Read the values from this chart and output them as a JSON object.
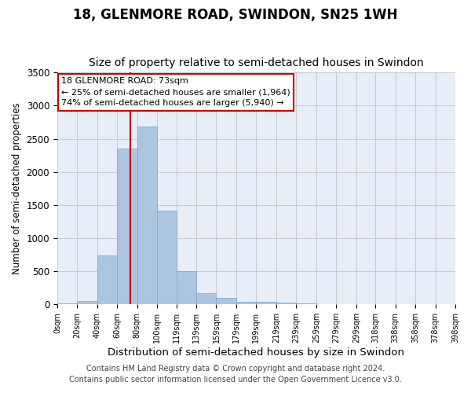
{
  "title": "18, GLENMORE ROAD, SWINDON, SN25 1WH",
  "subtitle": "Size of property relative to semi-detached houses in Swindon",
  "xlabel": "Distribution of semi-detached houses by size in Swindon",
  "ylabel": "Number of semi-detached properties",
  "annotation_title": "18 GLENMORE ROAD: 73sqm",
  "annotation_line1": "← 25% of semi-detached houses are smaller (1,964)",
  "annotation_line2": "74% of semi-detached houses are larger (5,940) →",
  "footer1": "Contains HM Land Registry data © Crown copyright and database right 2024.",
  "footer2": "Contains public sector information licensed under the Open Government Licence v3.0.",
  "property_size": 73,
  "bar_left_edges": [
    0,
    20,
    40,
    60,
    80,
    100,
    119,
    139,
    159,
    179,
    199,
    219,
    239,
    259,
    279,
    299,
    318,
    338,
    358,
    378
  ],
  "bar_widths": [
    20,
    20,
    20,
    20,
    20,
    19,
    20,
    20,
    20,
    20,
    20,
    20,
    20,
    20,
    20,
    19,
    20,
    20,
    20,
    20
  ],
  "bar_heights": [
    20,
    55,
    740,
    2350,
    2680,
    1420,
    500,
    175,
    95,
    35,
    45,
    30,
    20,
    5,
    2,
    1,
    0,
    0,
    0,
    0
  ],
  "tick_labels": [
    "0sqm",
    "20sqm",
    "40sqm",
    "60sqm",
    "80sqm",
    "100sqm",
    "119sqm",
    "139sqm",
    "159sqm",
    "179sqm",
    "199sqm",
    "219sqm",
    "239sqm",
    "259sqm",
    "279sqm",
    "299sqm",
    "318sqm",
    "338sqm",
    "358sqm",
    "378sqm",
    "398sqm"
  ],
  "bar_color": "#adc6e0",
  "bar_edge_color": "#7aadd4",
  "vline_color": "#cc0000",
  "vline_x": 73,
  "annotation_box_color": "#ffffff",
  "annotation_box_edge": "#cc0000",
  "ylim": [
    0,
    3500
  ],
  "yticks": [
    0,
    500,
    1000,
    1500,
    2000,
    2500,
    3000,
    3500
  ],
  "grid_color": "#cccccc",
  "bg_color": "#e8eef8",
  "title_fontsize": 12,
  "subtitle_fontsize": 10,
  "tick_fontsize": 7,
  "ylabel_fontsize": 8.5,
  "xlabel_fontsize": 9.5,
  "footer_fontsize": 7
}
